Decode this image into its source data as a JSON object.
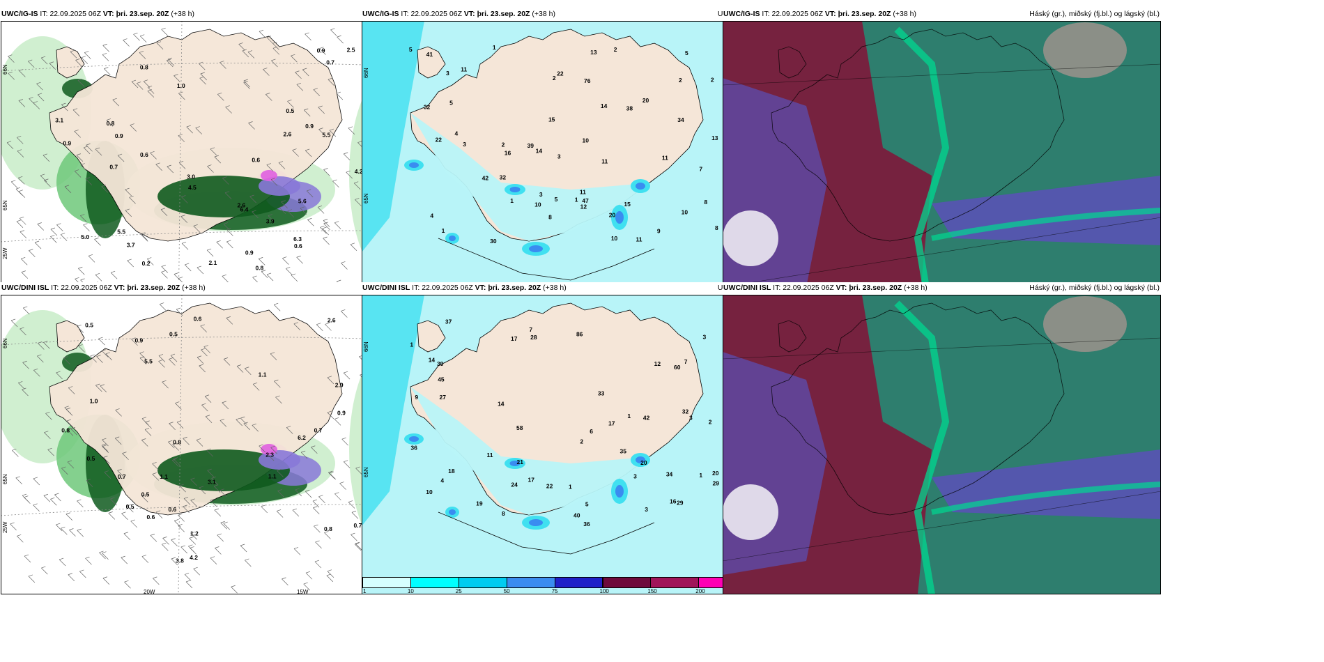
{
  "panels": [
    {
      "id": "a",
      "model": "UWC/IG-IS",
      "it_label": "IT:",
      "it": "22.09.2025 06Z",
      "vt_label": "VT:",
      "vt": "þri. 23.sep. 20Z",
      "lead": "(+38 h)",
      "right_title": "",
      "grid_labels": [
        "66N",
        "65N",
        "25W",
        "20W",
        "15W"
      ],
      "values": [
        "0.8",
        "0.8",
        "5.5",
        "0.8",
        "0.9",
        "0.9",
        "4.2",
        "0.6",
        "4.5",
        "3.7",
        "5.0",
        "3.1",
        "3.0",
        "2.6",
        "2.6",
        "0.9",
        "0.9",
        "0.7",
        "5.6",
        "5.5",
        "6.3",
        "6.4",
        "0.2",
        "0.6",
        "0.6",
        "0.5",
        "0.7",
        "0.9",
        "2.1",
        "1.0",
        "3.9",
        "2.5"
      ]
    },
    {
      "id": "b",
      "model": "UWC/IG-IS",
      "it_label": "IT:",
      "it": "22.09.2025 06Z",
      "vt_label": "VT:",
      "vt": "þri. 23.sep. 20Z",
      "lead": "(+38 h)",
      "right_title": "Uppsöfnuð úrkoma (mm)",
      "grid_labels": [
        "66N",
        "65N"
      ],
      "values": [
        "10",
        "8",
        "11",
        "13",
        "15",
        "38",
        "11",
        "8",
        "11",
        "20",
        "4",
        "2",
        "2",
        "1",
        "3",
        "1",
        "2",
        "2",
        "1",
        "1",
        "2",
        "10",
        "32",
        "41",
        "10",
        "34",
        "22",
        "7",
        "16",
        "12",
        "47",
        "13",
        "14",
        "11",
        "3",
        "5",
        "15",
        "30",
        "32",
        "39",
        "76",
        "22",
        "20",
        "14",
        "8",
        "5",
        "5",
        "5",
        "3",
        "4",
        "3",
        "9",
        "10",
        "11",
        "42"
      ]
    },
    {
      "id": "c",
      "model": "UWC/IG-IS",
      "it_label": "IT:",
      "it": "22.09.2025 06Z",
      "vt_label": "VT:",
      "vt": "þri. 23.sep. 20Z",
      "lead": "(+38 h)",
      "right_title": "Háský (gr.), miðský (fj.bl.) og lágský (bl.)",
      "grid_labels": [],
      "values": []
    },
    {
      "id": "d",
      "model": "UWC/DINI ISL",
      "it_label": "IT:",
      "it": "22.09.2025 06Z",
      "vt_label": "VT:",
      "vt": "þri. 23.sep. 20Z",
      "lead": "(+38 h)",
      "right_title": "",
      "grid_labels": [
        "66N",
        "65N",
        "25W",
        "20W",
        "15W"
      ],
      "values": [
        "1.1",
        "0.9",
        "0.7",
        "0.8",
        "3.1",
        "2.9",
        "0.6",
        "0.6",
        "1.1",
        "1.2",
        "0.5",
        "0.8",
        "0.5",
        "4.2",
        "0.7",
        "1.1",
        "0.5",
        "0.9",
        "0.6",
        "1.0",
        "3.8",
        "6.2",
        "5.5",
        "2.3",
        "1.0",
        "0.5",
        "0.8",
        "0.5",
        "0.7",
        "2.6"
      ]
    },
    {
      "id": "e",
      "model": "UWC/DINI ISL",
      "it_label": "IT:",
      "it": "22.09.2025 06Z",
      "vt_label": "VT:",
      "vt": "þri. 23.sep. 20Z",
      "lead": "(+38 h)",
      "right_title": "Uppsöfnuð úrkoma (mm)",
      "grid_labels": [
        "66N",
        "65N"
      ],
      "values": [
        "6",
        "1",
        "2",
        "12",
        "28",
        "20",
        "39",
        "14",
        "17",
        "16",
        "14",
        "37",
        "58",
        "7",
        "1",
        "2",
        "1",
        "3",
        "1",
        "36",
        "33",
        "34",
        "8",
        "29",
        "20",
        "11",
        "17",
        "45",
        "42",
        "36",
        "19",
        "18",
        "21",
        "22",
        "3",
        "35",
        "27",
        "29",
        "24",
        "40",
        "32",
        "17",
        "10",
        "4",
        "3",
        "9",
        "7",
        "5",
        "3",
        "86",
        "60"
      ]
    },
    {
      "id": "f",
      "model": "UWC/DINI ISL",
      "it_label": "IT:",
      "it": "22.09.2025 06Z",
      "vt_label": "VT:",
      "vt": "þri. 23.sep. 20Z",
      "lead": "(+38 h)",
      "right_title": "Háský (gr.), miðský (fj.bl.) og lágský (bl.)",
      "grid_labels": [],
      "values": []
    }
  ],
  "colorbar": {
    "labels": [
      "1",
      "10",
      "25",
      "50",
      "75",
      "100",
      "150",
      "200",
      "400"
    ],
    "colors": [
      "#d6ffff",
      "#00ffff",
      "#00ccf0",
      "#3a8cf0",
      "#2020c8",
      "#6e0a3c",
      "#a0145a",
      "#ff00b4",
      "#ffb4f0"
    ]
  },
  "colors": {
    "land": "#f5e6d8",
    "precip_light": "#c8ecc8",
    "precip_mid": "#6ec87a",
    "precip_dark": "#0f5a1e",
    "precip_violet": "#8878d8",
    "precip_magenta": "#e060e0",
    "rain_light": "#b8f4f8",
    "rain_mid": "#40e0f0",
    "cloud_high": "#7a1e3c",
    "cloud_mid": "#5a50b8",
    "cloud_low": "#2e7e6e",
    "cloud_teal": "#00d890"
  }
}
